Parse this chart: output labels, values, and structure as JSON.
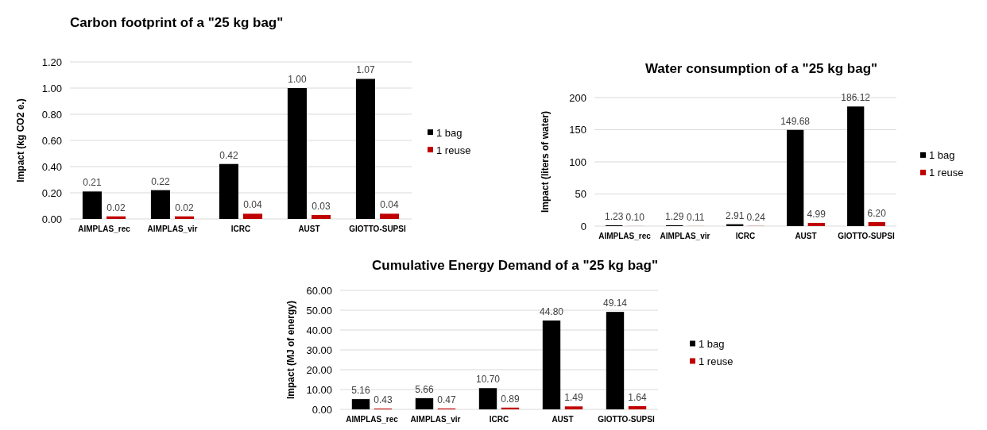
{
  "chart_data": [
    {
      "type": "bar",
      "title": "Carbon footprint of a \"25 kg bag\"",
      "ylabel": "Impact (kg CO2 e.)",
      "categories": [
        "AIMPLAS_rec",
        "AIMPLAS_vir",
        "ICRC",
        "AUST",
        "GIOTTO-SUPSI"
      ],
      "series": [
        {
          "name": "1 bag",
          "color": "#000000",
          "values": [
            0.21,
            0.22,
            0.42,
            1.0,
            1.07
          ],
          "value_labels": [
            "0.21",
            "0.22",
            "0.42",
            "1.00",
            "1.07"
          ]
        },
        {
          "name": "1 reuse",
          "color": "#c00000",
          "values": [
            0.02,
            0.02,
            0.04,
            0.03,
            0.04
          ],
          "value_labels": [
            "0.02",
            "0.02",
            "0.04",
            "0.03",
            "0.04"
          ]
        }
      ],
      "ylim": [
        0,
        1.2
      ],
      "yticks": [
        {
          "value": 0,
          "label": "0.00"
        },
        {
          "value": 0.2,
          "label": "0.20"
        },
        {
          "value": 0.4,
          "label": "0.40"
        },
        {
          "value": 0.6,
          "label": "0.60"
        },
        {
          "value": 0.8,
          "label": "0.80"
        },
        {
          "value": 1.0,
          "label": "1.00"
        },
        {
          "value": 1.2,
          "label": "1.20"
        }
      ],
      "grid": "y",
      "legend": "right"
    },
    {
      "type": "bar",
      "title": "Water consumption of a \"25 kg bag\"",
      "ylabel": "Impact (liters of water)",
      "categories": [
        "AIMPLAS_rec",
        "AIMPLAS_vir",
        "ICRC",
        "AUST",
        "GIOTTO-SUPSI"
      ],
      "series": [
        {
          "name": "1 bag",
          "color": "#000000",
          "values": [
            1.23,
            1.29,
            2.91,
            149.68,
            186.12
          ],
          "value_labels": [
            "1.23",
            "1.29",
            "2.91",
            "149.68",
            "186.12"
          ]
        },
        {
          "name": "1 reuse",
          "color": "#c00000",
          "values": [
            0.1,
            0.11,
            0.24,
            4.99,
            6.2
          ],
          "value_labels": [
            "0.10",
            "0.11",
            "0.24",
            "4.99",
            "6.20"
          ]
        }
      ],
      "ylim": [
        0,
        200
      ],
      "yticks": [
        0,
        50,
        100,
        150,
        200
      ],
      "grid": "y",
      "legend": "right"
    },
    {
      "type": "bar",
      "title": "Cumulative Energy Demand of a \"25 kg bag\"",
      "ylabel": "Impact (MJ of energy)",
      "categories": [
        "AIMPLAS_rec",
        "AIMPLAS_vir",
        "ICRC",
        "AUST",
        "GIOTTO-SUPSI"
      ],
      "series": [
        {
          "name": "1 bag",
          "color": "#000000",
          "values": [
            5.16,
            5.66,
            10.7,
            44.8,
            49.14
          ],
          "value_labels": [
            "5.16",
            "5.66",
            "10.70",
            "44.80",
            "49.14"
          ]
        },
        {
          "name": "1 reuse",
          "color": "#c00000",
          "values": [
            0.43,
            0.47,
            0.89,
            1.49,
            1.64
          ],
          "value_labels": [
            "0.43",
            "0.47",
            "0.89",
            "1.49",
            "1.64"
          ]
        }
      ],
      "ylim": [
        0,
        60
      ],
      "yticks": [
        {
          "value": 0,
          "label": "0.00"
        },
        {
          "value": 10,
          "label": "10.00"
        },
        {
          "value": 20,
          "label": "20.00"
        },
        {
          "value": 30,
          "label": "30.00"
        },
        {
          "value": 40,
          "label": "40.00"
        },
        {
          "value": 50,
          "label": "50.00"
        },
        {
          "value": 60,
          "label": "60.00"
        }
      ],
      "grid": "y",
      "legend": "right"
    }
  ]
}
